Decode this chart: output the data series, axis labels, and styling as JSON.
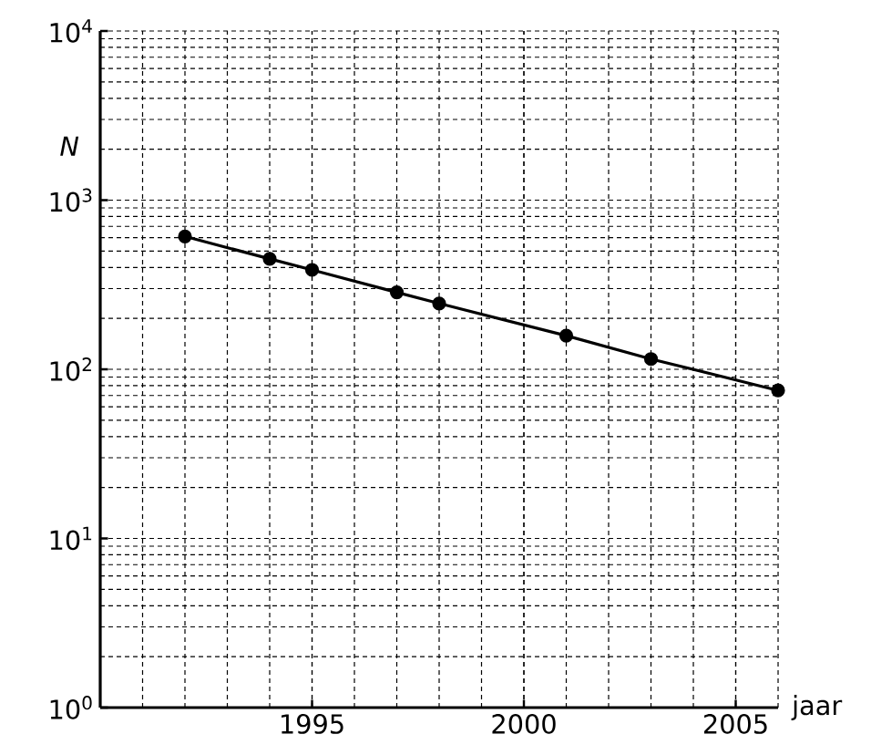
{
  "chart_data": {
    "type": "line",
    "xlabel": "jaar",
    "ylabel": "N",
    "x": [
      1992,
      1994,
      1995,
      1997,
      1998,
      2001,
      2003,
      2006
    ],
    "series": [
      {
        "color": "#000000",
        "values": [
          610,
          450,
          387,
          285,
          245,
          158,
          115,
          75
        ]
      }
    ],
    "xlim": [
      1990,
      2006
    ],
    "xticks": [
      1995,
      2000,
      2005
    ],
    "ylim": [
      1,
      10000
    ],
    "yticks": [
      {
        "value": 1,
        "label": "10$^{0}$"
      },
      {
        "value": 10,
        "label": "10$^{1}$"
      },
      {
        "value": 100,
        "label": "10$^{2}$"
      },
      {
        "value": 1000,
        "label": "10$^{3}$"
      },
      {
        "value": 10000,
        "label": "10$^{4}$"
      }
    ],
    "log": "y",
    "grid": true,
    "marker": "circle",
    "line_style": "solid"
  }
}
